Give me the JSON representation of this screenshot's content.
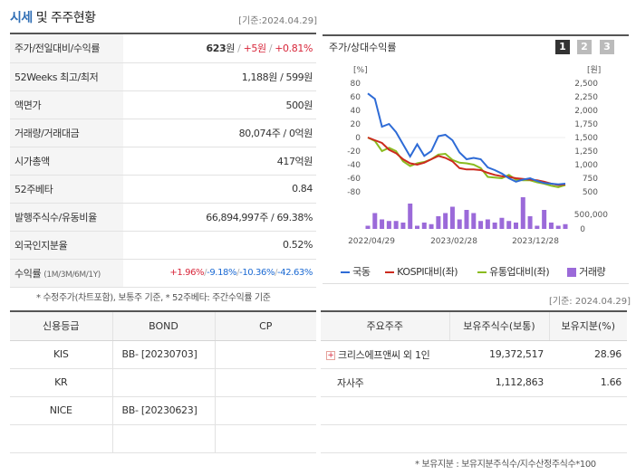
{
  "header": {
    "title_main": "시세",
    "title_rest": " 및 주주현황",
    "base_date": "[기준:2024.04.29]"
  },
  "quote": {
    "price_row": {
      "label": "주가/전일대비/수익률",
      "price": "623",
      "unit": "원",
      "change": "+5원",
      "rate": "+0.81%"
    },
    "week52": {
      "label": "52Weeks 최고/최저",
      "value": "1,188원 / 599원"
    },
    "par": {
      "label": "액면가",
      "value": "500원"
    },
    "volume": {
      "label": "거래량/거래대금",
      "value": "80,074주 / 0억원"
    },
    "mktcap": {
      "label": "시가총액",
      "value": "417억원"
    },
    "beta": {
      "label": "52주베타",
      "value": "0.84"
    },
    "shares": {
      "label": "발행주식수/유동비율",
      "value": "66,894,997주 / 69.38%"
    },
    "foreign": {
      "label": "외국인지분율",
      "value": "0.52%"
    },
    "returns": {
      "label": "수익률",
      "sublabel": "(1M/3M/6M/1Y)",
      "r1": "+1.96%",
      "r2": "-9.18%",
      "r3": "-10.36%",
      "r4": "-42.63%"
    }
  },
  "note1": "* 수정주가(차트포함), 보통주 기준, * 52주베타: 주간수익률 기준",
  "chart_panel": {
    "title": "주가/상대수익률",
    "pages": [
      "1",
      "2",
      "3"
    ],
    "base_date": "[기준: 2024.04.29]"
  },
  "chart_data": {
    "type": "line",
    "left_axis_unit": "[%]",
    "right_axis_unit": "[원]",
    "left_ticks": [
      80,
      60,
      40,
      20,
      0,
      -20,
      -40,
      -60,
      -80
    ],
    "right_ticks": [
      "2,500",
      "2,250",
      "2,000",
      "1,750",
      "1,500",
      "1,250",
      "1,000",
      "750",
      "500"
    ],
    "volume_ticks": [
      "500,000",
      "0"
    ],
    "x_labels": [
      "2022/04/29",
      "2023/02/28",
      "2023/12/28"
    ],
    "ylim_left": [
      -80,
      80
    ],
    "ylim_right": [
      500,
      2500
    ],
    "series": [
      {
        "name": "국동",
        "color": "#2e6bd6",
        "values": [
          65,
          57,
          16,
          20,
          8,
          -10,
          -28,
          -10,
          -27,
          -20,
          2,
          4,
          -4,
          -22,
          -32,
          -30,
          -32,
          -44,
          -48,
          -53,
          -60,
          -65,
          -62,
          -60,
          -64,
          -67,
          -68,
          -69,
          -68
        ]
      },
      {
        "name": "KOSPI대비(좌)",
        "color": "#cc2a1e",
        "values": [
          0,
          -4,
          -8,
          -18,
          -23,
          -32,
          -38,
          -40,
          -37,
          -32,
          -27,
          -30,
          -35,
          -45,
          -47,
          -47,
          -48,
          -52,
          -55,
          -57,
          -58,
          -60,
          -61,
          -62,
          -63,
          -65,
          -68,
          -70,
          -69
        ]
      },
      {
        "name": "유통업대비(좌)",
        "color": "#8abb1f",
        "values": [
          0,
          -5,
          -20,
          -15,
          -20,
          -35,
          -42,
          -38,
          -36,
          -32,
          -25,
          -24,
          -33,
          -37,
          -38,
          -40,
          -45,
          -58,
          -59,
          -60,
          -55,
          -62,
          -63,
          -63,
          -66,
          -68,
          -71,
          -73,
          -70
        ]
      },
      {
        "name": "거래량",
        "color": "#9b6ad9",
        "values": [
          1,
          5,
          3,
          2.5,
          2.5,
          2,
          8,
          1,
          2,
          1.5,
          4,
          5,
          7,
          3,
          6,
          5,
          2.5,
          3,
          2,
          3.5,
          2.5,
          2,
          10,
          4,
          1,
          6,
          2,
          1,
          1.5
        ]
      }
    ]
  },
  "credit_table": {
    "headers": [
      "신용등급",
      "BOND",
      "CP"
    ],
    "rows": [
      {
        "agency": "KIS",
        "bond": "BB-  [20230703]",
        "cp": ""
      },
      {
        "agency": "KR",
        "bond": "",
        "cp": ""
      },
      {
        "agency": "NICE",
        "bond": "BB-  [20230623]",
        "cp": ""
      }
    ]
  },
  "holder_table": {
    "headers": [
      "주요주주",
      "보유주식수(보통)",
      "보유지분(%)"
    ],
    "rows": [
      {
        "name": "크리스에프앤씨 외 1인",
        "shares": "19,372,517",
        "pct": "28.96"
      },
      {
        "name": "자사주",
        "shares": "1,112,863",
        "pct": "1.66"
      }
    ]
  },
  "note2": "* 보유지분 : 보유지분주식수/지수산정주식수*100"
}
